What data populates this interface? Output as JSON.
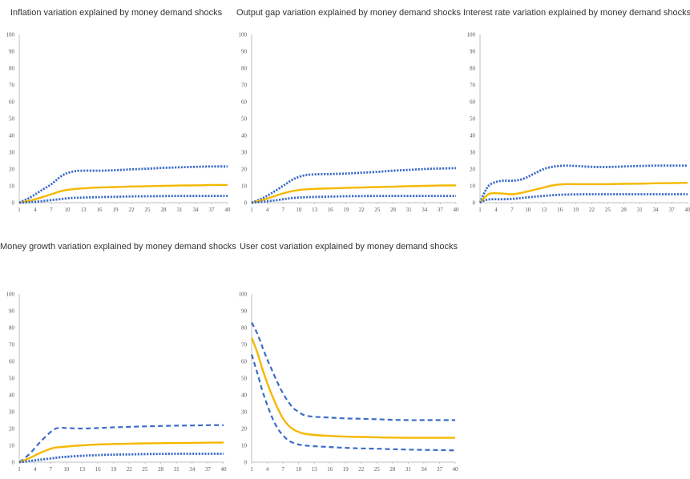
{
  "colors": {
    "median": "#f5b800",
    "bands": "#3b6cc7",
    "axis": "#bfbfbf"
  },
  "chart_data": [
    {
      "type": "line",
      "title": "Inflation variation explained by money demand shocks",
      "ylim": [
        0,
        100
      ],
      "yticks": [
        0,
        10,
        20,
        30,
        40,
        50,
        60,
        70,
        80,
        90,
        100
      ],
      "xticks": [
        1,
        4,
        7,
        10,
        13,
        16,
        19,
        22,
        25,
        28,
        31,
        34,
        37,
        40
      ],
      "xlim": [
        1,
        40
      ],
      "grid": false,
      "series": [
        {
          "style": "dotted",
          "x": [
            1,
            3,
            5,
            7,
            9,
            11,
            13,
            16,
            19,
            22,
            25,
            28,
            31,
            34,
            37,
            40
          ],
          "y": [
            0,
            3,
            7,
            11,
            16,
            18.5,
            19,
            19,
            19.3,
            19.8,
            20.2,
            20.7,
            21,
            21.3,
            21.5,
            21.5
          ]
        },
        {
          "style": "solid",
          "x": [
            1,
            3,
            5,
            7,
            9,
            11,
            13,
            16,
            19,
            22,
            25,
            28,
            31,
            34,
            37,
            40
          ],
          "y": [
            0,
            1.2,
            3,
            5,
            7,
            8,
            8.5,
            9,
            9.3,
            9.6,
            9.8,
            10,
            10.2,
            10.3,
            10.5,
            10.5
          ]
        },
        {
          "style": "dotted",
          "x": [
            1,
            3,
            5,
            7,
            9,
            11,
            13,
            16,
            19,
            22,
            25,
            28,
            31,
            34,
            37,
            40
          ],
          "y": [
            0,
            0.3,
            0.8,
            1.5,
            2.2,
            2.8,
            3,
            3.3,
            3.5,
            3.7,
            3.8,
            3.9,
            4,
            4,
            4,
            4
          ]
        }
      ]
    },
    {
      "type": "line",
      "title": "Output gap variation explained by money demand shocks",
      "ylim": [
        0,
        100
      ],
      "yticks": [
        0,
        10,
        20,
        30,
        40,
        50,
        60,
        70,
        80,
        90,
        100
      ],
      "xticks": [
        1,
        4,
        7,
        10,
        13,
        16,
        19,
        22,
        25,
        28,
        31,
        34,
        37,
        40
      ],
      "xlim": [
        1,
        40
      ],
      "grid": false,
      "series": [
        {
          "style": "dotted",
          "x": [
            1,
            3,
            5,
            7,
            9,
            11,
            13,
            16,
            19,
            22,
            25,
            28,
            31,
            34,
            37,
            40
          ],
          "y": [
            0,
            2.5,
            6,
            10,
            14,
            16.2,
            16.8,
            17,
            17.3,
            17.8,
            18.3,
            19,
            19.5,
            20,
            20.3,
            20.5
          ]
        },
        {
          "style": "solid",
          "x": [
            1,
            3,
            5,
            7,
            9,
            11,
            13,
            16,
            19,
            22,
            25,
            28,
            31,
            34,
            37,
            40
          ],
          "y": [
            0,
            1.5,
            3.5,
            5.5,
            7,
            7.8,
            8.2,
            8.5,
            8.8,
            9,
            9.3,
            9.5,
            9.8,
            10,
            10.2,
            10.3
          ]
        },
        {
          "style": "dotted",
          "x": [
            1,
            3,
            5,
            7,
            9,
            11,
            13,
            16,
            19,
            22,
            25,
            28,
            31,
            34,
            37,
            40
          ],
          "y": [
            0,
            0.5,
            1.2,
            2,
            2.8,
            3.2,
            3.4,
            3.6,
            3.8,
            3.9,
            4,
            4,
            4,
            4,
            4,
            4
          ]
        }
      ]
    },
    {
      "type": "line",
      "title": "Interest rate variation explained by money demand shocks",
      "ylim": [
        0,
        100
      ],
      "yticks": [
        0,
        10,
        20,
        30,
        40,
        50,
        60,
        70,
        80,
        90,
        100
      ],
      "xticks": [
        1,
        4,
        7,
        10,
        13,
        16,
        19,
        22,
        25,
        28,
        31,
        34,
        37,
        40
      ],
      "xlim": [
        1,
        40
      ],
      "grid": false,
      "series": [
        {
          "style": "dotted",
          "x": [
            1,
            2,
            3,
            5,
            7,
            9,
            11,
            13,
            15,
            17,
            19,
            22,
            25,
            28,
            31,
            34,
            37,
            40
          ],
          "y": [
            0,
            7,
            11,
            13,
            13,
            14,
            17,
            20,
            21.5,
            22,
            21.8,
            21.3,
            21.2,
            21.5,
            21.8,
            22,
            22,
            22
          ]
        },
        {
          "style": "solid",
          "x": [
            1,
            2,
            3,
            5,
            7,
            9,
            11,
            13,
            15,
            17,
            19,
            22,
            25,
            28,
            31,
            34,
            37,
            40
          ],
          "y": [
            0,
            3.5,
            5.5,
            5.5,
            5,
            6,
            7.5,
            9,
            10.5,
            11,
            11,
            11,
            11,
            11.2,
            11.3,
            11.5,
            11.6,
            11.8
          ]
        },
        {
          "style": "dotted",
          "x": [
            1,
            2,
            3,
            5,
            7,
            9,
            11,
            13,
            15,
            17,
            19,
            22,
            25,
            28,
            31,
            34,
            37,
            40
          ],
          "y": [
            0,
            1.5,
            2,
            2,
            2.2,
            2.8,
            3.5,
            4,
            4.5,
            4.8,
            4.9,
            5,
            5,
            5,
            5,
            5,
            5,
            5
          ]
        }
      ]
    },
    {
      "type": "line",
      "title": "Money growth variation explained by money demand shocks",
      "ylim": [
        0,
        100
      ],
      "yticks": [
        0,
        10,
        20,
        30,
        40,
        50,
        60,
        70,
        80,
        90,
        100
      ],
      "xticks": [
        1,
        4,
        7,
        10,
        13,
        16,
        19,
        22,
        25,
        28,
        31,
        34,
        37,
        40
      ],
      "xlim": [
        1,
        40
      ],
      "grid": false,
      "series": [
        {
          "style": "dashed",
          "x": [
            1,
            3,
            5,
            7,
            8,
            9,
            10,
            13,
            16,
            19,
            22,
            25,
            28,
            31,
            34,
            37,
            40
          ],
          "y": [
            0,
            5,
            12,
            18,
            20,
            20.5,
            20.3,
            20,
            20.3,
            20.7,
            21,
            21.3,
            21.5,
            21.7,
            21.8,
            22,
            22
          ]
        },
        {
          "style": "solid",
          "x": [
            1,
            3,
            5,
            7,
            8,
            9,
            10,
            13,
            16,
            19,
            22,
            25,
            28,
            31,
            34,
            37,
            40
          ],
          "y": [
            0,
            2.5,
            5.5,
            8,
            8.7,
            9,
            9.3,
            10,
            10.5,
            10.8,
            11,
            11.2,
            11.3,
            11.4,
            11.5,
            11.6,
            11.7
          ]
        },
        {
          "style": "dotted",
          "x": [
            1,
            3,
            5,
            7,
            8,
            9,
            10,
            13,
            16,
            19,
            22,
            25,
            28,
            31,
            34,
            37,
            40
          ],
          "y": [
            0,
            0.7,
            1.5,
            2.2,
            2.6,
            3,
            3.2,
            3.8,
            4.2,
            4.5,
            4.6,
            4.8,
            4.9,
            5,
            5,
            5,
            5
          ]
        }
      ]
    },
    {
      "type": "line",
      "title": "User cost variation explained by money demand shocks",
      "ylim": [
        0,
        100
      ],
      "yticks": [
        0,
        10,
        20,
        30,
        40,
        50,
        60,
        70,
        80,
        90,
        100
      ],
      "xticks": [
        1,
        4,
        7,
        10,
        13,
        16,
        19,
        22,
        25,
        28,
        31,
        34,
        37,
        40
      ],
      "xlim": [
        1,
        40
      ],
      "grid": false,
      "series": [
        {
          "style": "dashed",
          "x": [
            1,
            2,
            3,
            4,
            5,
            6,
            7,
            8,
            9,
            10,
            11,
            13,
            16,
            19,
            22,
            25,
            28,
            31,
            34,
            37,
            40
          ],
          "y": [
            83,
            77,
            69,
            61,
            54,
            47,
            41,
            36,
            32,
            30,
            28,
            27,
            26.5,
            26,
            25.8,
            25.5,
            25.2,
            25,
            25,
            25,
            25
          ]
        },
        {
          "style": "solid",
          "x": [
            1,
            2,
            3,
            4,
            5,
            6,
            7,
            8,
            9,
            10,
            11,
            13,
            16,
            19,
            22,
            25,
            28,
            31,
            34,
            37,
            40
          ],
          "y": [
            74,
            66,
            56,
            47,
            39,
            32,
            26,
            22,
            19.5,
            18,
            17,
            16.2,
            15.6,
            15.2,
            15,
            14.8,
            14.6,
            14.5,
            14.5,
            14.5,
            14.5
          ]
        },
        {
          "style": "dashed",
          "x": [
            1,
            2,
            3,
            4,
            5,
            6,
            7,
            8,
            9,
            10,
            11,
            13,
            16,
            19,
            22,
            25,
            28,
            31,
            34,
            37,
            40
          ],
          "y": [
            64,
            54,
            43,
            34,
            26,
            20,
            16,
            13,
            11.5,
            10.5,
            10,
            9.5,
            9,
            8.5,
            8.2,
            8,
            7.7,
            7.5,
            7.3,
            7.2,
            7
          ]
        }
      ]
    }
  ]
}
